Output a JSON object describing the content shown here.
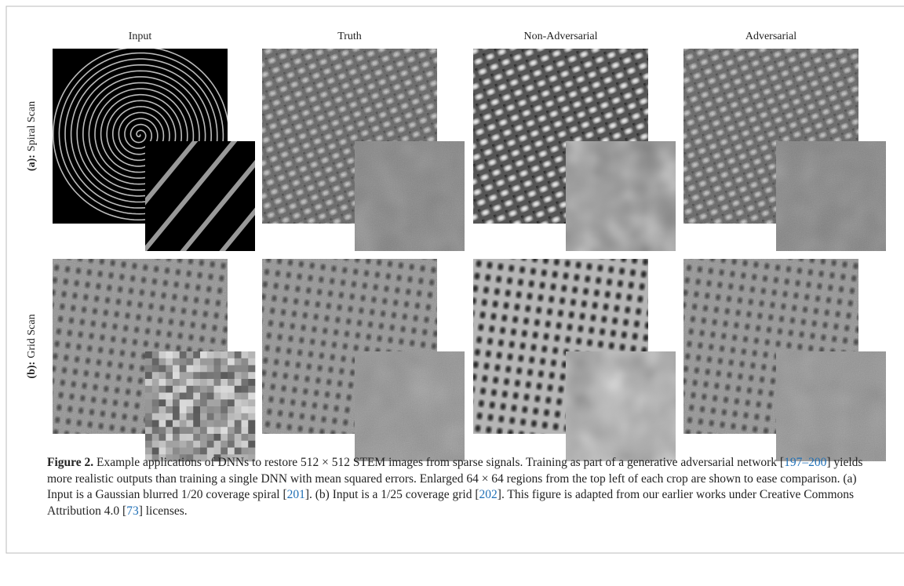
{
  "figure": {
    "columns": [
      "Input",
      "Truth",
      "Non-Adversarial",
      "Adversarial"
    ],
    "rows": [
      {
        "tag": "(a):",
        "label": "Spiral Scan"
      },
      {
        "tag": "(b):",
        "label": "Grid Scan"
      }
    ],
    "caption": {
      "label": "Figure 2.",
      "parts": [
        " Example applications of DNNs to restore 512 × 512 STEM images from sparse signals. Training as part of a generative adversarial network [",
        {
          "cite": "197–200"
        },
        "] yields more realistic outputs than training a single DNN with mean squared errors. Enlarged 64 × 64 regions from the top left of each crop are shown to ease comparison. (a) Input is a Gaussian blurred 1/20 coverage spiral [",
        {
          "cite": "201"
        },
        "]. (b) Input is a 1/25 coverage grid [",
        {
          "cite": "202"
        },
        "]. This figure is adapted from our earlier works under Creative Commons Attribution 4.0 [",
        {
          "cite": "73"
        },
        "] licenses."
      ]
    }
  }
}
